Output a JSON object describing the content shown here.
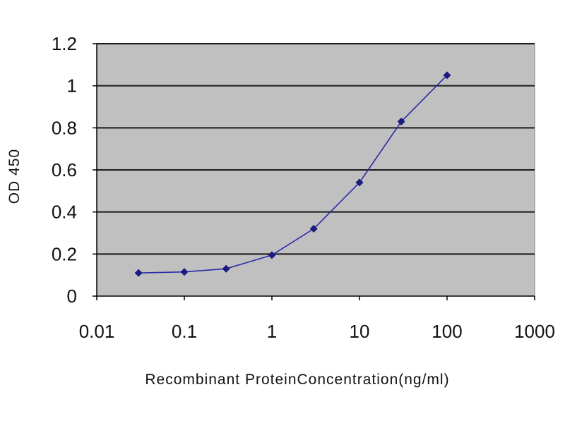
{
  "chart_data": {
    "type": "line",
    "title": "",
    "xlabel": "Recombinant ProteinConcentration(ng/ml)",
    "ylabel": "OD 450",
    "x_scale": "log",
    "xlim": [
      0.01,
      1000
    ],
    "ylim": [
      0,
      1.2
    ],
    "x_ticks": [
      "0.01",
      "0.1",
      "1",
      "10",
      "100",
      "1000"
    ],
    "y_ticks": [
      "0",
      "0.2",
      "0.4",
      "0.6",
      "0.8",
      "1",
      "1.2"
    ],
    "grid": "horizontal",
    "legend": "none",
    "series": [
      {
        "x": [
          0.03,
          0.1,
          0.3,
          1,
          3,
          10,
          30,
          100
        ],
        "y": [
          0.11,
          0.115,
          0.13,
          0.195,
          0.32,
          0.54,
          0.83,
          1.05
        ]
      }
    ],
    "colors": {
      "plot_background": "#c0c0c0",
      "gridline": "#1a1a1a",
      "series_line": "#2a2aa8",
      "marker": "#1a1a80"
    }
  }
}
